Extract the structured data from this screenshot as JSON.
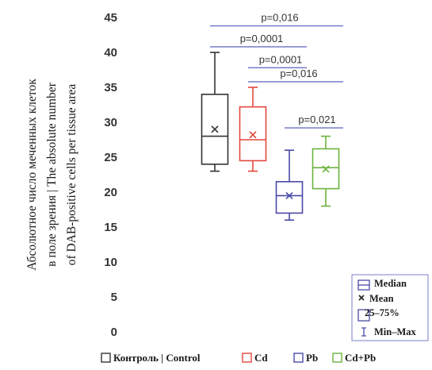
{
  "chart_data": {
    "type": "box",
    "ylabel_lines": [
      "Абсолютное число меченных клеток",
      "в поле зрения | The absolute number",
      "of DAB-positive cells per tissue area"
    ],
    "ylim": [
      0,
      45
    ],
    "yticks": [
      0,
      5,
      10,
      15,
      20,
      25,
      30,
      35,
      40,
      45
    ],
    "grid": false,
    "groups": [
      {
        "name": "Контроль | Control",
        "color": "#333333",
        "min": 23,
        "q1": 24,
        "median": 28,
        "q3": 34,
        "max": 40,
        "mean": 29
      },
      {
        "name": "Cd",
        "color": "#e4473c",
        "min": 23,
        "q1": 24.5,
        "median": 27.5,
        "q3": 32.2,
        "max": 35,
        "mean": 28.2
      },
      {
        "name": "Pb",
        "color": "#4a4aa8",
        "min": 16,
        "q1": 17,
        "median": 19.5,
        "q3": 21.5,
        "max": 26,
        "mean": 19.5
      },
      {
        "name": "Cd+Pb",
        "color": "#6cb33e",
        "min": 18,
        "q1": 20.5,
        "median": 23.5,
        "q3": 26.2,
        "max": 28,
        "mean": 23.3
      }
    ],
    "comparisons": [
      {
        "from": 0,
        "to": 3,
        "label": "p=0,016",
        "y": 43.8
      },
      {
        "from": 0,
        "to": 2,
        "label": "p=0,0001",
        "y": 40.8
      },
      {
        "from": 1,
        "to": 2,
        "label": "p=0,0001",
        "y": 37.8
      },
      {
        "from": 1,
        "to": 3,
        "label": "p=0,016",
        "y": 35.8
      },
      {
        "from": 2,
        "to": 3,
        "label": "p=0,021",
        "y": 29.2
      }
    ],
    "inset_legend": {
      "color": "#4a4aa8",
      "items": [
        "Median",
        "Mean",
        "25–75%",
        "Min–Max"
      ]
    }
  }
}
